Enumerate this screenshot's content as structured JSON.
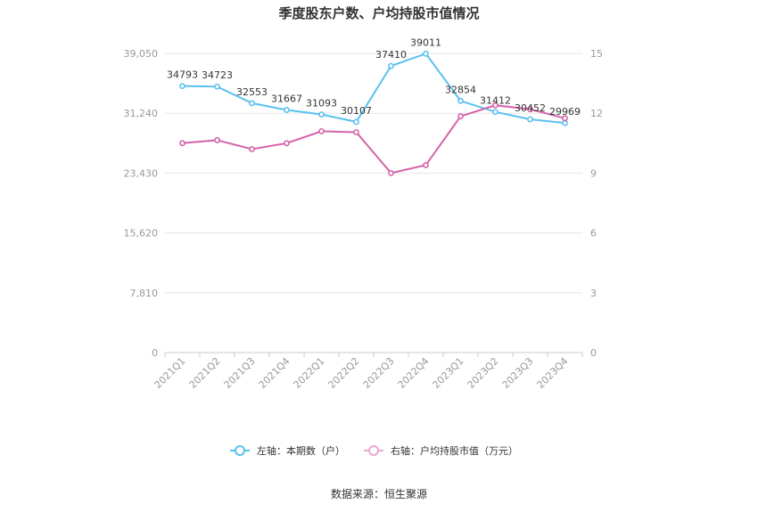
{
  "chart_data": {
    "type": "line",
    "title": "季度股东户数、户均持股市值情况",
    "categories": [
      "2021Q1",
      "2021Q2",
      "2021Q3",
      "2021Q4",
      "2022Q1",
      "2022Q2",
      "2022Q3",
      "2022Q4",
      "2023Q1",
      "2023Q2",
      "2023Q3",
      "2023Q4"
    ],
    "y_left": {
      "ticks": [
        "0",
        "7,810",
        "15,620",
        "23,430",
        "31,240",
        "39,050"
      ],
      "range": [
        0,
        39050
      ]
    },
    "y_right": {
      "ticks": [
        "0",
        "3",
        "6",
        "9",
        "12",
        "15"
      ],
      "range": [
        0,
        15
      ]
    },
    "series": [
      {
        "name": "左轴：本期数（户）",
        "axis": "left",
        "color": "#5bc0ef",
        "values": [
          34793,
          34723,
          32553,
          31667,
          31093,
          30107,
          37410,
          39011,
          32854,
          31412,
          30452,
          29969
        ],
        "labels": [
          "34793",
          "34723",
          "32553",
          "31667",
          "31093",
          "30107",
          "37410",
          "39011",
          "32854",
          "31412",
          "30452",
          "29969"
        ]
      },
      {
        "name": "右轴：户均持股市值（万元）",
        "axis": "right",
        "color": "#d462a8",
        "values": [
          10.5,
          10.65,
          10.2,
          10.5,
          11.1,
          11.05,
          9.0,
          9.4,
          11.85,
          12.4,
          12.2,
          11.75
        ]
      }
    ],
    "grid": true,
    "legend_position": "bottom",
    "source": "数据来源：恒生聚源"
  }
}
